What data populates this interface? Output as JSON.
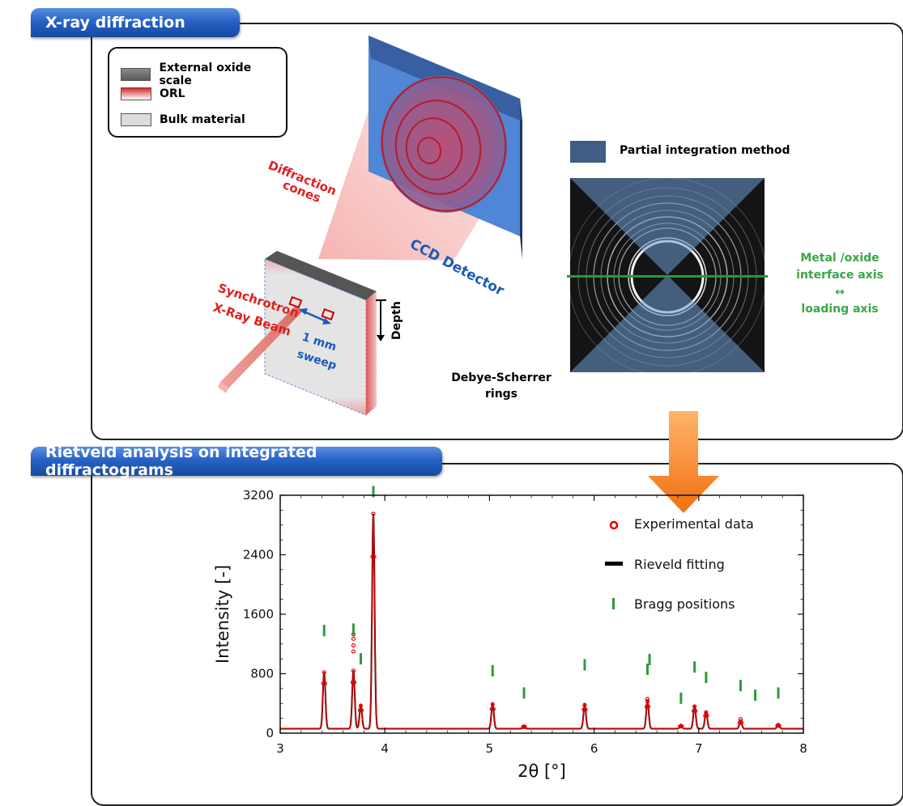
{
  "top_panel": {
    "title": "X-ray diffraction",
    "legend": {
      "items": [
        {
          "label": "External oxide scale",
          "color": "#6d6d6d"
        },
        {
          "label": "ORL",
          "color": "#d83a3a"
        },
        {
          "label": "Bulk material",
          "color": "#dcdcdc"
        }
      ]
    },
    "labels": {
      "diffraction_cones": "Diffraction cones",
      "ccd_detector": "CCD Detector",
      "synchrotron": "Synchrotron X-Ray Beam",
      "sweep": "1 mm sweep",
      "depth": "Depth",
      "debye_scherrer": "Debye-Scherrer rings",
      "partial_integration": "Partial integration method",
      "axis_note_line1": "Metal /oxide",
      "axis_note_line2": "interface axis",
      "axis_note_arrow": "↔",
      "axis_note_line3": "loading axis"
    }
  },
  "bottom_panel": {
    "title": "Rietveld analysis on integrated diffractograms"
  },
  "chart_data": {
    "type": "line",
    "xlabel": "2θ [°]",
    "ylabel": "Intensity [-]",
    "xlim": [
      3,
      8
    ],
    "ylim": [
      0,
      3200
    ],
    "xticks": [
      3,
      4,
      5,
      6,
      7,
      8
    ],
    "yticks": [
      0,
      800,
      1600,
      2400,
      3200
    ],
    "legend": {
      "placement": "top-right",
      "entries": [
        "Experimental data",
        "Rieveld fitting",
        "Bragg positions"
      ]
    },
    "colors": {
      "experimental": "#e00000",
      "fit": "#000000",
      "bragg": "#2f9a3c"
    },
    "background_level": 60,
    "peaks": [
      {
        "x": 3.42,
        "y": 820
      },
      {
        "x": 3.7,
        "y": 840
      },
      {
        "x": 3.77,
        "y": 370
      },
      {
        "x": 3.89,
        "y": 2950
      },
      {
        "x": 5.03,
        "y": 390
      },
      {
        "x": 5.33,
        "y": 90
      },
      {
        "x": 5.91,
        "y": 380
      },
      {
        "x": 6.51,
        "y": 430
      },
      {
        "x": 6.83,
        "y": 100
      },
      {
        "x": 6.96,
        "y": 360
      },
      {
        "x": 7.07,
        "y": 280
      },
      {
        "x": 7.4,
        "y": 160
      },
      {
        "x": 7.76,
        "y": 110
      }
    ],
    "experimental_outliers": [
      {
        "x": 3.7,
        "y": 1100
      },
      {
        "x": 3.7,
        "y": 1180
      },
      {
        "x": 3.7,
        "y": 1270
      },
      {
        "x": 3.7,
        "y": 1330
      },
      {
        "x": 6.51,
        "y": 460
      },
      {
        "x": 7.4,
        "y": 190
      }
    ],
    "bragg_positions": [
      {
        "x": 3.42,
        "y": 1380
      },
      {
        "x": 3.7,
        "y": 1400
      },
      {
        "x": 3.77,
        "y": 1000
      },
      {
        "x": 3.89,
        "y": 3250
      },
      {
        "x": 5.03,
        "y": 840
      },
      {
        "x": 5.33,
        "y": 540
      },
      {
        "x": 5.91,
        "y": 920
      },
      {
        "x": 6.51,
        "y": 860
      },
      {
        "x": 6.53,
        "y": 990
      },
      {
        "x": 6.83,
        "y": 470
      },
      {
        "x": 6.96,
        "y": 890
      },
      {
        "x": 7.07,
        "y": 750
      },
      {
        "x": 7.4,
        "y": 640
      },
      {
        "x": 7.54,
        "y": 510
      },
      {
        "x": 7.76,
        "y": 540
      }
    ]
  }
}
